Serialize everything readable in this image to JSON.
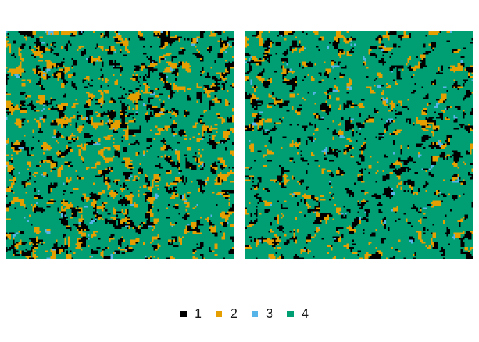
{
  "chart_data": [
    {
      "type": "heatmap",
      "title": "",
      "xlabel": "",
      "ylabel": "",
      "grid": false,
      "legend_position": "bottom",
      "grid_size": [
        128,
        128
      ],
      "categories": [
        "1",
        "2",
        "3",
        "4"
      ],
      "class_proportions": [
        0.17,
        0.17,
        0.05,
        0.61
      ]
    },
    {
      "type": "heatmap",
      "title": "",
      "xlabel": "",
      "ylabel": "",
      "grid": false,
      "legend_position": "bottom",
      "grid_size": [
        128,
        128
      ],
      "categories": [
        "1",
        "2",
        "3",
        "4"
      ],
      "class_proportions": [
        0.16,
        0.12,
        0.05,
        0.67
      ]
    }
  ],
  "legend": {
    "items": [
      {
        "label": "1",
        "color": "#000000"
      },
      {
        "label": "2",
        "color": "#E69F00"
      },
      {
        "label": "3",
        "color": "#56B4E9"
      },
      {
        "label": "4",
        "color": "#009E73"
      }
    ]
  }
}
